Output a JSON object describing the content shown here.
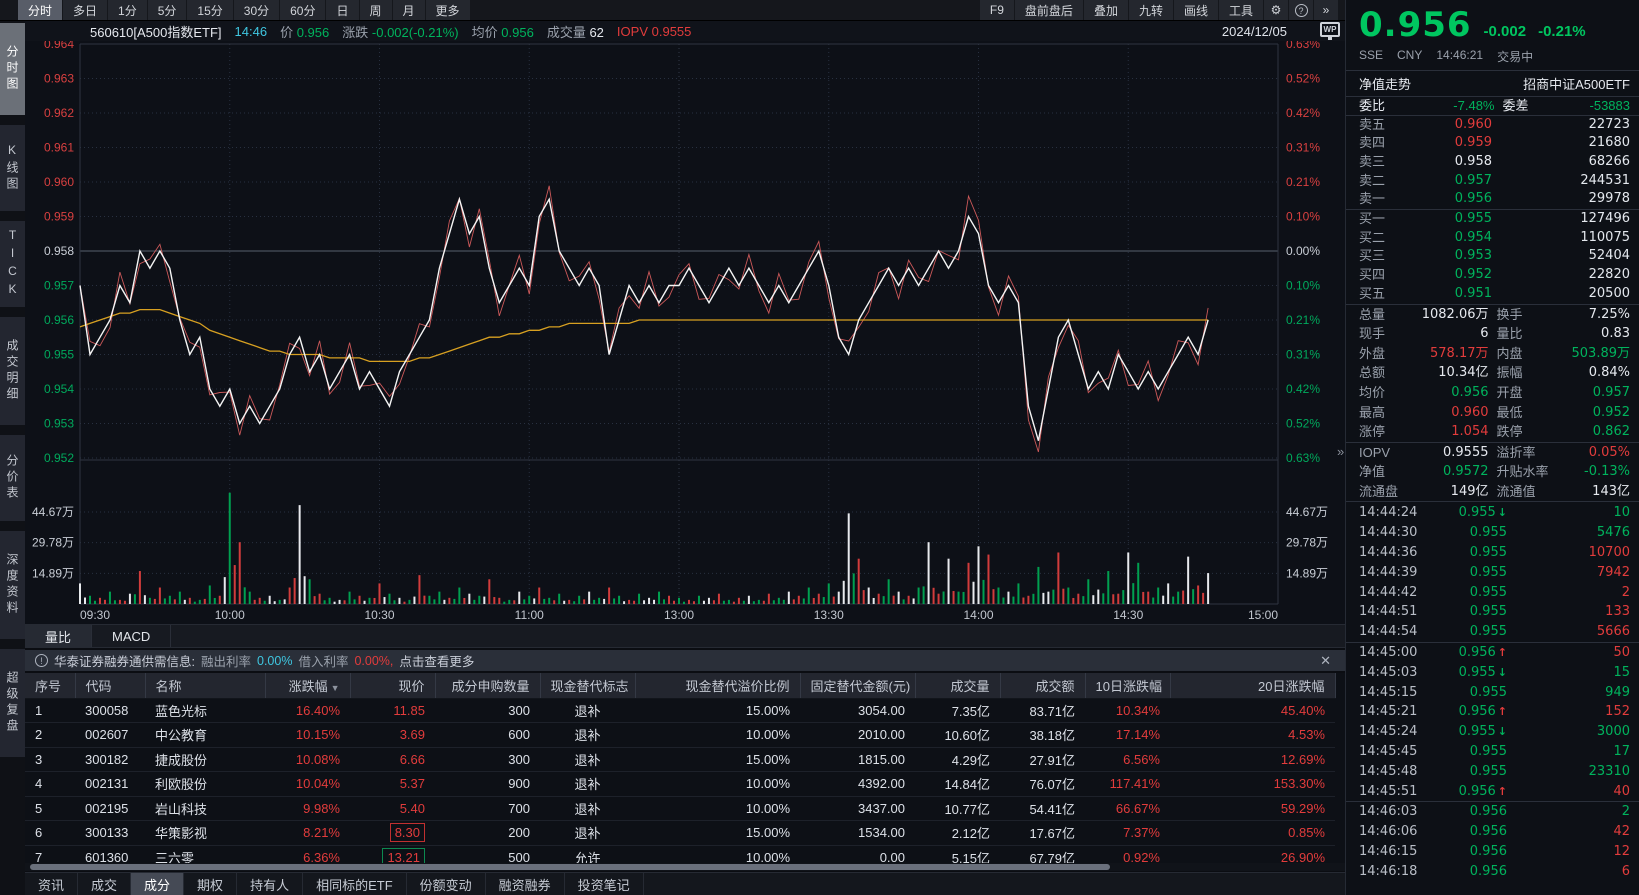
{
  "colors": {
    "red": "#e23c3c",
    "green": "#00b35d",
    "big_green": "#00c660",
    "yellow": "#d7a021",
    "cyan": "#3fc6e0",
    "white": "#e6e9ef",
    "gray_label": "#9aa1ac",
    "axis_red": "#d84040",
    "axis_green": "#00a95c"
  },
  "topbar": {
    "left": [
      "分时",
      "多日",
      "1分",
      "5分",
      "15分",
      "30分",
      "60分",
      "日",
      "周",
      "月",
      "更多"
    ],
    "active_left": "分时",
    "right": [
      "F9",
      "盘前盘后",
      "叠加",
      "九转",
      "画线",
      "工具"
    ],
    "gear_icon": "⚙",
    "help_icon": "?",
    "expand_icon": "»"
  },
  "sidebar": {
    "items": [
      "分时图",
      "K线图",
      "TICK",
      "成交明细",
      "分价表",
      "深度资料",
      "超级复盘"
    ],
    "active": "分时图"
  },
  "chart_header": {
    "symbol": "560610[A500指数ETF]",
    "time": "14:46",
    "price_label": "价",
    "price": "0.956",
    "change_label": "涨跌",
    "change": "-0.002(-0.21%)",
    "avg_label": "均价",
    "avg": "0.956",
    "vol_label": "成交量",
    "vol": "62",
    "iopv_label": "IOPV",
    "iopv": "0.9555",
    "date": "2024/12/05"
  },
  "wp_icon": "WP",
  "panel_collapse_icon": "»",
  "chart_data": {
    "type": "line",
    "title": "560610 A500指数ETF 分时走势",
    "x_axis": {
      "labels": [
        "09:30",
        "10:00",
        "10:30",
        "11:00",
        "13:00",
        "13:30",
        "14:00",
        "14:30",
        "15:00"
      ],
      "total_minutes": 240,
      "current_minute": 226
    },
    "price_axis": {
      "labels": [
        0.964,
        0.963,
        0.962,
        0.961,
        0.96,
        0.959,
        0.958,
        0.957,
        0.956,
        0.955,
        0.954,
        0.953,
        0.952
      ],
      "prev_close": 0.958
    },
    "pct_axis": {
      "labels": [
        "0.63%",
        "0.52%",
        "0.42%",
        "0.31%",
        "0.21%",
        "0.10%",
        "0.00%",
        "0.10%",
        "0.21%",
        "0.31%",
        "0.42%",
        "0.52%",
        "0.63%"
      ]
    },
    "volume_axis": {
      "labels": [
        "44.67万",
        "29.78万",
        "14.89万"
      ],
      "label_values": [
        44.67,
        29.78,
        14.89
      ],
      "unit": "万"
    },
    "sample_interval_minutes": 2,
    "series": [
      {
        "name": "价格",
        "color": "#f5f5f5",
        "values": [
          0.957,
          0.955,
          0.9555,
          0.956,
          0.957,
          0.9565,
          0.958,
          0.9575,
          0.958,
          0.9575,
          0.956,
          0.955,
          0.9555,
          0.954,
          0.9535,
          0.954,
          0.953,
          0.9535,
          0.953,
          0.9535,
          0.954,
          0.955,
          0.9555,
          0.9545,
          0.955,
          0.954,
          0.9545,
          0.955,
          0.954,
          0.9545,
          0.954,
          0.9535,
          0.9545,
          0.955,
          0.9555,
          0.956,
          0.9575,
          0.9585,
          0.9595,
          0.9585,
          0.959,
          0.9575,
          0.9565,
          0.957,
          0.9575,
          0.957,
          0.959,
          0.9595,
          0.958,
          0.9575,
          0.957,
          0.9575,
          0.957,
          0.955,
          0.956,
          0.957,
          0.9565,
          0.957,
          0.9565,
          0.957,
          0.957,
          0.9575,
          0.957,
          0.9565,
          0.957,
          0.9575,
          0.957,
          0.9575,
          0.957,
          0.9565,
          0.957,
          0.9565,
          0.957,
          0.9575,
          0.958,
          0.957,
          0.9555,
          0.955,
          0.956,
          0.9565,
          0.957,
          0.9575,
          0.957,
          0.9575,
          0.957,
          0.9575,
          0.958,
          0.9575,
          0.958,
          0.959,
          0.9585,
          0.957,
          0.9565,
          0.957,
          0.9565,
          0.9535,
          0.9525,
          0.954,
          0.9555,
          0.956,
          0.955,
          0.954,
          0.9545,
          0.954,
          0.955,
          0.9545,
          0.954,
          0.9545,
          0.954,
          0.9545,
          0.955,
          0.9555,
          0.955,
          0.956
        ]
      },
      {
        "name": "均价",
        "color": "#d7a021",
        "values": [
          0.9558,
          0.9559,
          0.956,
          0.9561,
          0.9562,
          0.9562,
          0.9563,
          0.9563,
          0.9563,
          0.9562,
          0.9561,
          0.956,
          0.9559,
          0.9557,
          0.9556,
          0.9555,
          0.9554,
          0.9553,
          0.9552,
          0.9551,
          0.9551,
          0.955,
          0.955,
          0.955,
          0.955,
          0.9549,
          0.9549,
          0.9549,
          0.9549,
          0.9548,
          0.9548,
          0.9548,
          0.9548,
          0.9548,
          0.9549,
          0.9549,
          0.955,
          0.9551,
          0.9552,
          0.9553,
          0.9554,
          0.9555,
          0.9555,
          0.9556,
          0.9556,
          0.9557,
          0.9557,
          0.9558,
          0.9558,
          0.9559,
          0.9559,
          0.9559,
          0.9559,
          0.9559,
          0.9559,
          0.9559,
          0.956,
          0.956,
          0.956,
          0.956,
          0.956,
          0.956,
          0.956,
          0.956,
          0.956,
          0.956,
          0.956,
          0.956,
          0.956,
          0.956,
          0.956,
          0.956,
          0.956,
          0.956,
          0.956,
          0.956,
          0.956,
          0.956,
          0.956,
          0.956,
          0.956,
          0.956,
          0.956,
          0.956,
          0.956,
          0.956,
          0.956,
          0.956,
          0.956,
          0.956,
          0.956,
          0.956,
          0.956,
          0.956,
          0.956,
          0.956,
          0.956,
          0.956,
          0.956,
          0.956,
          0.956,
          0.956,
          0.956,
          0.956,
          0.956,
          0.956,
          0.956,
          0.956,
          0.956,
          0.956,
          0.956,
          0.956,
          0.956,
          0.956
        ]
      }
    ],
    "volume": {
      "values": [
        10,
        4,
        3,
        6,
        2,
        5,
        16,
        3,
        8,
        4,
        6,
        3,
        2,
        9,
        4,
        54,
        30,
        6,
        3,
        4,
        2,
        8,
        48,
        12,
        5,
        3,
        2,
        6,
        4,
        3,
        10,
        5,
        3,
        2,
        14,
        4,
        6,
        3,
        8,
        5,
        4,
        12,
        3,
        2,
        6,
        4,
        8,
        3,
        5,
        2,
        4,
        6,
        3,
        8,
        4,
        2,
        5,
        3,
        6,
        4,
        3,
        2,
        4,
        3,
        5,
        2,
        3,
        4,
        2,
        5,
        3,
        6,
        4,
        8,
        5,
        10,
        6,
        44,
        22,
        8,
        5,
        12,
        6,
        4,
        8,
        30,
        5,
        22,
        6,
        20,
        28,
        24,
        8,
        6,
        10,
        4,
        18,
        6,
        25,
        8,
        5,
        12,
        7,
        16,
        5,
        25,
        20,
        6,
        8,
        10,
        6,
        23,
        9,
        15
      ],
      "colors": "wgrgrwrgrggrggrgrgrwgrwgrgwgrgrgwgrggrgwgrrgwgrggrgwgrgrgwgrgrgwrgrwgrgwrgrgwwrwrgwrgwrwgrwrgwgrgwrgrgwgrwgrgwgwrw"
    }
  },
  "sub_tabs": {
    "items": [
      "量比",
      "MACD"
    ],
    "active": "量比"
  },
  "notice": {
    "title": "华泰证券融券通供需信息:",
    "out_label": "融出利率",
    "out_value": "0.00%",
    "in_label": "借入利率",
    "in_value": "0.00%,",
    "more": "点击查看更多",
    "close_icon": "✕"
  },
  "table": {
    "headers": [
      "序号",
      "代码",
      "名称",
      "涨跌幅",
      "现价",
      "成分申购数量",
      "现金替代标志",
      "现金替代溢价比例",
      "固定替代金额(元)",
      "成交量",
      "成交额",
      "10日涨跌幅",
      "20日涨跌幅"
    ],
    "sort_column": "涨跌幅",
    "rows": [
      [
        "1",
        "300058",
        "蓝色光标",
        "16.40%",
        "11.85",
        "300",
        "退补",
        "15.00%",
        "3054.00",
        "7.35亿",
        "83.71亿",
        "10.34%",
        "45.40%"
      ],
      [
        "2",
        "002607",
        "中公教育",
        "10.15%",
        "3.69",
        "600",
        "退补",
        "10.00%",
        "2010.00",
        "10.60亿",
        "38.18亿",
        "17.14%",
        "4.53%"
      ],
      [
        "3",
        "300182",
        "捷成股份",
        "10.08%",
        "6.66",
        "300",
        "退补",
        "15.00%",
        "1815.00",
        "4.29亿",
        "27.91亿",
        "6.56%",
        "12.69%"
      ],
      [
        "4",
        "002131",
        "利欧股份",
        "10.04%",
        "5.37",
        "900",
        "退补",
        "10.00%",
        "4392.00",
        "14.84亿",
        "76.07亿",
        "117.41%",
        "153.30%"
      ],
      [
        "5",
        "002195",
        "岩山科技",
        "9.98%",
        "5.40",
        "700",
        "退补",
        "10.00%",
        "3437.00",
        "10.77亿",
        "54.41亿",
        "66.67%",
        "59.29%"
      ],
      [
        "6",
        "300133",
        "华策影视",
        "8.21%",
        "8.30",
        "200",
        "退补",
        "15.00%",
        "1534.00",
        "2.12亿",
        "17.67亿",
        "7.37%",
        "0.85%"
      ],
      [
        "7",
        "601360",
        "三六零",
        "6.36%",
        "13.21",
        "500",
        "允许",
        "10.00%",
        "0.00",
        "5.15亿",
        "67.79亿",
        "0.92%",
        "26.90%"
      ]
    ],
    "price_box_rows": {
      "6": "red",
      "7": "green"
    }
  },
  "bottom_tabs": {
    "items": [
      "资讯",
      "成交",
      "成分",
      "期权",
      "持有人",
      "相同标的ETF",
      "份额变动",
      "融资融券",
      "投资笔记"
    ],
    "active": "成分"
  },
  "quote_panel": {
    "price": "0.956",
    "change": "-0.002",
    "change_pct": "-0.21%",
    "exchange": "SSE",
    "currency": "CNY",
    "time": "14:46:21",
    "status": "交易中",
    "nav_label": "净值走势",
    "fund_name": "招商中证A500ETF",
    "weibi_label": "委比",
    "weibi_value": "-7.48%",
    "weicha_label": "委差",
    "weicha_value": "-53883",
    "asks": [
      [
        "卖五",
        "0.960",
        "22723",
        "r"
      ],
      [
        "卖四",
        "0.959",
        "21680",
        "r"
      ],
      [
        "卖三",
        "0.958",
        "68266",
        "w"
      ],
      [
        "卖二",
        "0.957",
        "244531",
        "g"
      ],
      [
        "卖一",
        "0.956",
        "29978",
        "g"
      ]
    ],
    "bids": [
      [
        "买一",
        "0.955",
        "127496",
        "g"
      ],
      [
        "买二",
        "0.954",
        "110075",
        "g"
      ],
      [
        "买三",
        "0.953",
        "52404",
        "g"
      ],
      [
        "买四",
        "0.952",
        "22820",
        "g"
      ],
      [
        "买五",
        "0.951",
        "20500",
        "g"
      ]
    ],
    "stats": [
      [
        "总量",
        "1082.06万",
        "w",
        "换手",
        "7.25%",
        "w"
      ],
      [
        "现手",
        "6",
        "w",
        "量比",
        "0.83",
        "w"
      ],
      [
        "外盘",
        "578.17万",
        "r",
        "内盘",
        "503.89万",
        "g"
      ],
      [
        "总额",
        "10.34亿",
        "w",
        "振幅",
        "0.84%",
        "w"
      ],
      [
        "均价",
        "0.956",
        "g",
        "开盘",
        "0.957",
        "g"
      ],
      [
        "最高",
        "0.960",
        "r",
        "最低",
        "0.952",
        "g"
      ],
      [
        "涨停",
        "1.054",
        "r",
        "跌停",
        "0.862",
        "g"
      ],
      [
        "IOPV",
        "0.9555",
        "w",
        "溢折率",
        "0.05%",
        "r"
      ],
      [
        "净值",
        "0.9572",
        "g",
        "升贴水率",
        "-0.13%",
        "g"
      ],
      [
        "流通盘",
        "149亿",
        "w",
        "流通值",
        "143亿",
        "w"
      ]
    ],
    "stat_separators": [
      6,
      9
    ],
    "ticks": [
      [
        "14:44:24",
        "0.955",
        "d",
        "10",
        "g"
      ],
      [
        "14:44:30",
        "0.955",
        "",
        "5476",
        "g"
      ],
      [
        "14:44:36",
        "0.955",
        "",
        "10700",
        "r"
      ],
      [
        "14:44:39",
        "0.955",
        "",
        "7942",
        "r"
      ],
      [
        "14:44:42",
        "0.955",
        "",
        "2",
        "r"
      ],
      [
        "14:44:51",
        "0.955",
        "",
        "133",
        "r"
      ],
      [
        "14:44:54",
        "0.955",
        "",
        "5666",
        "r"
      ],
      [
        "14:45:00",
        "0.956",
        "u",
        "50",
        "r"
      ],
      [
        "14:45:03",
        "0.955",
        "d",
        "15",
        "g"
      ],
      [
        "14:45:15",
        "0.955",
        "",
        "949",
        "g"
      ],
      [
        "14:45:21",
        "0.956",
        "u",
        "152",
        "r"
      ],
      [
        "14:45:24",
        "0.955",
        "d",
        "3000",
        "g"
      ],
      [
        "14:45:45",
        "0.955",
        "",
        "17",
        "g"
      ],
      [
        "14:45:48",
        "0.955",
        "",
        "23310",
        "g"
      ],
      [
        "14:45:51",
        "0.956",
        "u",
        "40",
        "r"
      ],
      [
        "14:46:03",
        "0.956",
        "",
        "2",
        "g"
      ],
      [
        "14:46:06",
        "0.956",
        "",
        "42",
        "r"
      ],
      [
        "14:46:15",
        "0.956",
        "",
        "12",
        "r"
      ],
      [
        "14:46:18",
        "0.956",
        "",
        "6",
        "r"
      ]
    ]
  }
}
